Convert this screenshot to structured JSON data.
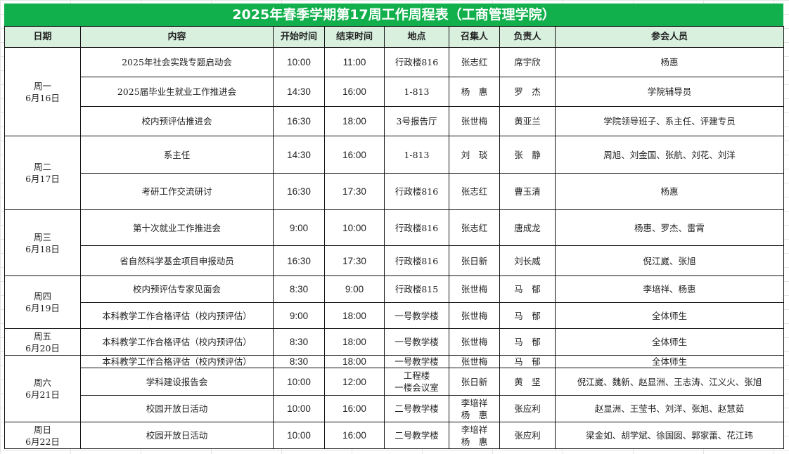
{
  "title": "2025年春季学期第17周工作周程表（工商管理学院）",
  "headers": [
    "日期",
    "内容",
    "开始时间",
    "结束时间",
    "地点",
    "召集人",
    "负责人",
    "参会人员"
  ],
  "colors": {
    "title_bg": "#12b04c",
    "header_bg": "#d9f0df"
  },
  "days": [
    {
      "day": "周一",
      "date": "6月16日",
      "rows": [
        {
          "content": "2025年社会实践专题启动会",
          "start": "10:00",
          "end": "11:00",
          "place": "行政楼816",
          "convener": "张志红",
          "owner": "席宇欣",
          "attendees": "杨惠"
        },
        {
          "content": "2025届毕业生就业工作推进会",
          "start": "14:30",
          "end": "16:00",
          "place": "1-813",
          "convener": "杨　惠",
          "owner": "罗　杰",
          "attendees": "学院辅导员"
        },
        {
          "content": "校内预评估推进会",
          "start": "16:30",
          "end": "18:00",
          "place": "3号报告厅",
          "convener": "张世梅",
          "owner": "黄亚兰",
          "attendees": "学院领导班子、系主任、评建专员"
        }
      ]
    },
    {
      "day": "周二",
      "date": "6月17日",
      "rows": [
        {
          "content": "系主任",
          "start": "14:30",
          "end": "16:00",
          "place": "1-813",
          "convener": "刘　琰",
          "owner": "张　静",
          "attendees": "周旭、刘金国、张航、刘花、刘洋"
        },
        {
          "content": "考研工作交流研讨",
          "start": "16:30",
          "end": "17:30",
          "place": "行政楼816",
          "convener": "张志红",
          "owner": "曹玉清",
          "attendees": "杨惠"
        }
      ]
    },
    {
      "day": "周三",
      "date": "6月18日",
      "rows": [
        {
          "content": "第十次就业工作推进会",
          "start": "9:00",
          "end": "10:00",
          "place": "行政楼816",
          "convener": "张志红",
          "owner": "唐成龙",
          "attendees": "杨惠、罗杰、雷霄"
        },
        {
          "content": "省自然科学基金项目申报动员",
          "start": "16:30",
          "end": "17:30",
          "place": "行政楼816",
          "convener": "张日新",
          "owner": "刘长威",
          "attendees": "倪江崴、张旭"
        }
      ]
    },
    {
      "day": "周四",
      "date": "6月19日",
      "rows": [
        {
          "content": "校内预评估专家见面会",
          "start": "8:30",
          "end": "9:00",
          "place": "行政楼815",
          "convener": "张世梅",
          "owner": "马　郁",
          "attendees": "李培祥、杨惠"
        },
        {
          "content": "本科教学工作合格评估（校内预评估）",
          "start": "9:00",
          "end": "18:00",
          "place": "一号教学楼",
          "convener": "张世梅",
          "owner": "马　郁",
          "attendees": "全体师生"
        }
      ]
    },
    {
      "day": "周五",
      "date": "6月20日",
      "rows": [
        {
          "content": "本科教学工作合格评估（校内预评估）",
          "start": "8:30",
          "end": "18:00",
          "place": "一号教学楼",
          "convener": "张世梅",
          "owner": "马　郁",
          "attendees": "全体师生"
        }
      ]
    },
    {
      "day": "周六",
      "date": "6月21日",
      "rows": [
        {
          "content": "本科教学工作合格评估（校内预评估）",
          "start": "8:30",
          "end": "18:00",
          "place": "一号教学楼",
          "convener": "张世梅",
          "owner": "马　郁",
          "attendees": "全体师生"
        },
        {
          "content": "学科建设报告会",
          "start": "10:00",
          "end": "12:00",
          "place": "工程楼\n一楼会议室",
          "convener": "张日新",
          "owner": "黄　坚",
          "attendees": "倪江崴、魏新、赵显洲、王志涛、江义火、张旭"
        },
        {
          "content": "校园开放日活动",
          "start": "10:00",
          "end": "16:00",
          "place": "二号教学楼",
          "convener": "李培祥\n杨　惠",
          "owner": "张应利",
          "attendees": "赵显洲、王莹书、刘洋、张旭、赵慧茹"
        }
      ]
    },
    {
      "day": "周日",
      "date": "6月22日",
      "rows": [
        {
          "content": "校园开放日活动",
          "start": "10:00",
          "end": "16:00",
          "place": "二号教学楼",
          "convener": "李培祥\n杨　惠",
          "owner": "张应利",
          "attendees": "梁金如、胡学斌、徐国囡、郭家蕾、花江玮"
        }
      ]
    }
  ]
}
